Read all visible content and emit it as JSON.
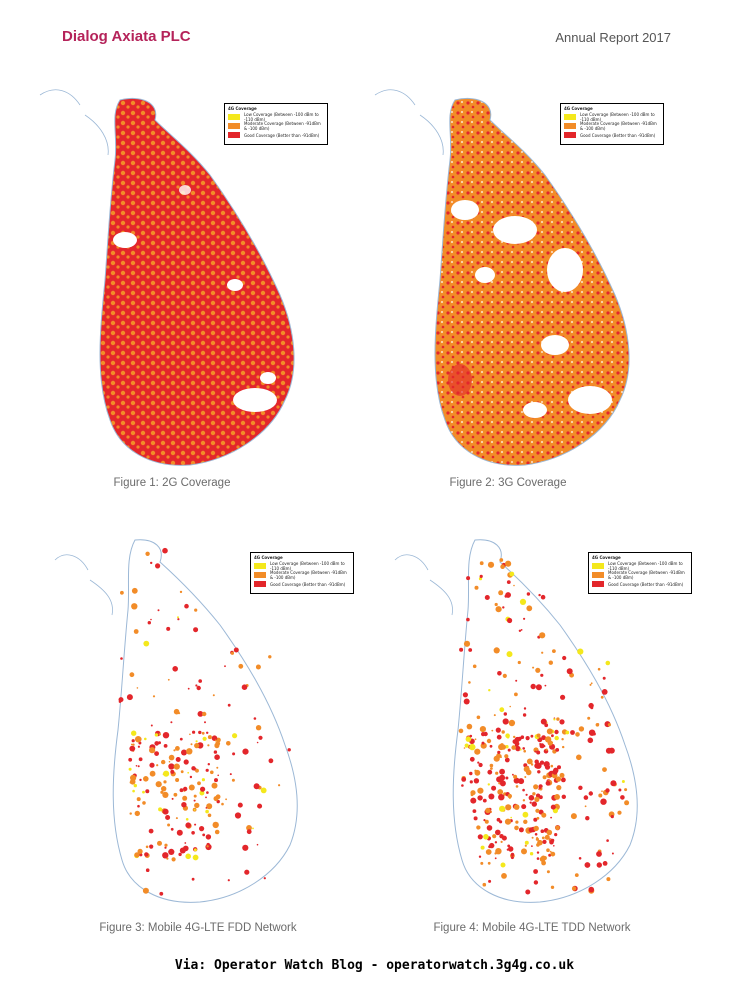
{
  "header": {
    "company": "Dialog Axiata PLC",
    "report": "Annual Report 2017"
  },
  "legend": {
    "title": "4G Coverage",
    "items": [
      {
        "label": "Low Coverage (Between -100 dBm to -110 dBm)",
        "color": "#f4e81c"
      },
      {
        "label": "Moderate Coverage (Between -91dBm & -100 dBm)",
        "color": "#f28c28"
      },
      {
        "label": "Good Coverage (Better than -91dBm)",
        "color": "#e3262b"
      }
    ]
  },
  "figures": [
    {
      "caption": "Figure 1: 2G Coverage",
      "coverage": "dense-red"
    },
    {
      "caption": "Figure 2: 3G Coverage",
      "coverage": "dense-orange"
    },
    {
      "caption": "Figure 3: Mobile 4G-LTE FDD Network",
      "coverage": "sparse"
    },
    {
      "caption": "Figure 4: Mobile 4G-LTE TDD Network",
      "coverage": "sparse"
    }
  ],
  "footer": "Via: Operator Watch Blog - operatorwatch.3g4g.co.uk"
}
